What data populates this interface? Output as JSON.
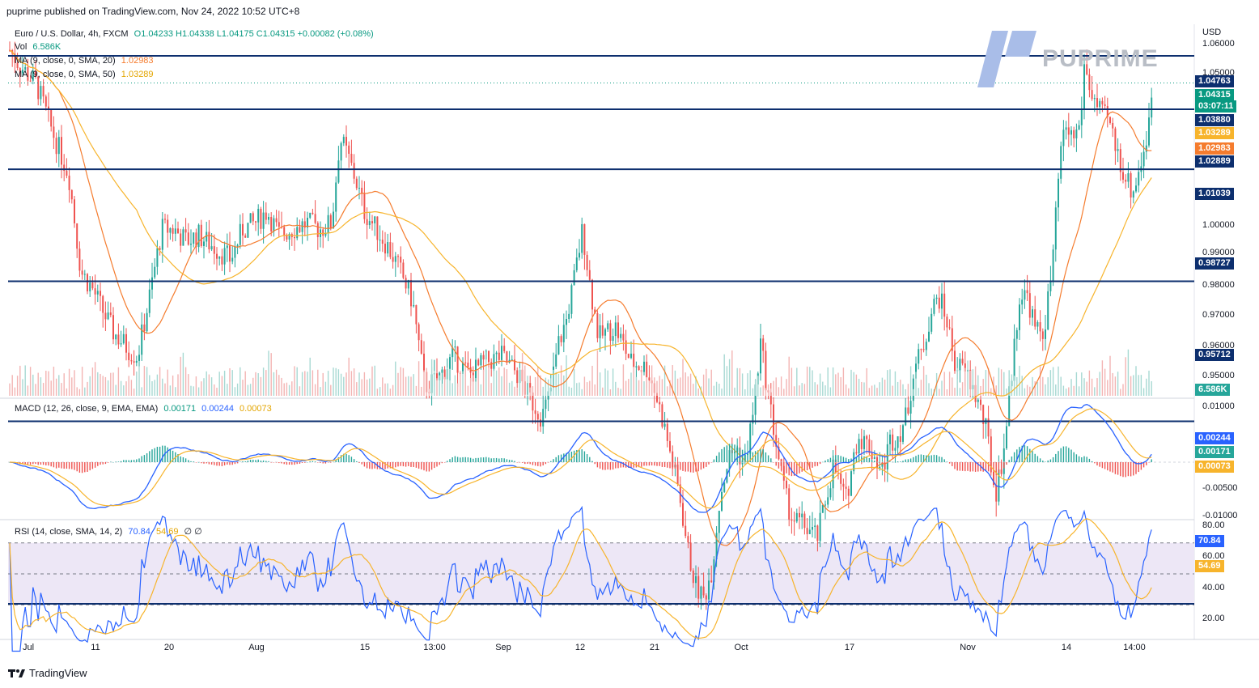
{
  "header": {
    "publisher_line": "puprime published on TradingView.com, Nov 24, 2022 10:52 UTC+8"
  },
  "watermark": {
    "text": "PUPRIME"
  },
  "legend": {
    "symbol": "Euro / U.S. Dollar, 4h, FXCM",
    "ohlc": "O1.04233 H1.04338 L1.04175 C1.04315 +0.00082 (+0.08%)",
    "vol_label": "Vol",
    "vol_value": "6.586K",
    "ma1_label": "MA (9, close, 0, SMA, 20)",
    "ma1_value": "1.02983",
    "ma2_label": "MA (9, close, 0, SMA, 50)",
    "ma2_value": "1.03289",
    "macd_label": "MACD (12, 26, close, 9, EMA, EMA)",
    "macd_hist": "0.00171",
    "macd_line": "0.00244",
    "macd_signal": "0.00073",
    "rsi_label": "RSI (14, close, SMA, 14, 2)",
    "rsi_value": "70.84",
    "rsi_ma": "54.69",
    "rsi_extra": "∅ ∅"
  },
  "price_axis": {
    "currency": "USD",
    "ticks": [
      "1.06000",
      "1.05000",
      "1.00000",
      "0.99000",
      "0.98000",
      "0.97000",
      "0.96000",
      "0.95000"
    ]
  },
  "price_badges": [
    {
      "text": "1.04763",
      "y": 1.04763,
      "color": "#0d2f6e"
    },
    {
      "text": "1.04315",
      "y": 1.04315,
      "color": "#089981"
    },
    {
      "text": "03:07:11",
      "y": 1.04315,
      "color": "#089981"
    },
    {
      "text": "1.03880",
      "y": 1.0388,
      "color": "#0d2f6e"
    },
    {
      "text": "1.03289",
      "y": 1.03289,
      "color": "#f7b42c"
    },
    {
      "text": "1.02983",
      "y": 1.02983,
      "color": "#f57c2e"
    },
    {
      "text": "1.02889",
      "y": 1.02889,
      "color": "#0d2f6e"
    },
    {
      "text": "1.01039",
      "y": 1.01039,
      "color": "#0d2f6e"
    },
    {
      "text": "0.98727",
      "y": 0.98727,
      "color": "#0d2f6e"
    },
    {
      "text": "0.95712",
      "y": 0.95712,
      "color": "#0d2f6e"
    },
    {
      "text": "6.586K",
      "y": 0.9458,
      "color": "#26a69a"
    }
  ],
  "macd_axis": {
    "ticks": [
      "0.01000",
      "-0.00500",
      "-0.01000"
    ],
    "badges": [
      {
        "text": "0.00244",
        "color": "#2962ff"
      },
      {
        "text": "0.00171",
        "color": "#26a69a"
      },
      {
        "text": "0.00073",
        "color": "#f7b42c"
      }
    ]
  },
  "rsi_axis": {
    "ticks": [
      "80.00",
      "60.00",
      "40.00",
      "20.00"
    ],
    "badges": [
      {
        "text": "70.84",
        "color": "#2962ff"
      },
      {
        "text": "54.69",
        "color": "#f7b42c"
      }
    ]
  },
  "time_axis": [
    "Jul",
    "11",
    "20",
    "Aug",
    "15",
    "13:00",
    "Sep",
    "12",
    "21",
    "Oct",
    "17",
    "Nov",
    "14",
    "14:00"
  ],
  "footer": {
    "brand": "TradingView"
  },
  "chart_data": {
    "type": "candlestick",
    "symbol": "EURUSD",
    "timeframe": "4h",
    "ylim": [
      0.945,
      1.062
    ],
    "horizontal_levels": [
      1.0655,
      1.04763,
      1.0388,
      1.02889,
      1.01039,
      0.98727,
      0.95712
    ],
    "price_path": {
      "x": [
        0,
        10,
        25,
        45,
        65,
        85,
        100,
        115,
        125,
        140,
        160,
        170,
        185,
        200,
        215,
        230,
        245,
        265,
        285,
        300,
        315,
        330,
        345,
        360,
        380,
        395,
        410,
        420,
        430,
        440,
        450,
        460,
        480,
        495,
        510,
        525,
        540,
        560,
        580,
        600,
        620,
        640,
        655,
        670,
        680,
        690,
        700,
        710,
        720,
        730,
        740,
        760,
        780,
        800,
        810,
        820,
        830,
        840,
        850,
        860,
        870,
        880,
        890,
        900,
        910,
        920,
        930,
        940,
        950,
        960,
        970,
        980,
        995,
        1010,
        1030,
        1045,
        1060,
        1075,
        1090,
        1100,
        1110,
        1120,
        1130,
        1140,
        1150,
        1160,
        1170,
        1180,
        1195,
        1210,
        1220,
        1230,
        1240,
        1250,
        1260,
        1270,
        1280,
        1290,
        1300,
        1305,
        1310,
        1318,
        1325,
        1335,
        1340,
        1350,
        1360,
        1370,
        1380,
        1390,
        1400,
        1410,
        1420,
        1424
      ],
      "y": [
        1.052,
        1.049,
        1.046,
        1.043,
        1.035,
        1.028,
        1.012,
        1.009,
        1.006,
        1.002,
        0.999,
        0.998,
        1.008,
        1.019,
        1.019,
        1.017,
        1.018,
        1.016,
        1.014,
        1.019,
        1.02,
        1.022,
        1.018,
        1.019,
        1.02,
        1.019,
        1.02,
        1.034,
        1.031,
        1.027,
        1.022,
        1.02,
        1.016,
        1.012,
        1.007,
        0.993,
        0.994,
        0.998,
        0.995,
        0.997,
        0.998,
        0.995,
        0.991,
        0.988,
        0.992,
        1.0,
        1.004,
        1.011,
        1.019,
        1.009,
        1.001,
        1.003,
        0.997,
        0.996,
        0.992,
        0.987,
        0.981,
        0.975,
        0.966,
        0.96,
        0.958,
        0.963,
        0.975,
        0.981,
        0.983,
        0.98,
        0.988,
        1.0,
        0.991,
        0.983,
        0.975,
        0.971,
        0.97,
        0.968,
        0.98,
        0.974,
        0.985,
        0.983,
        0.979,
        0.984,
        0.985,
        0.988,
        0.996,
        0.999,
        1.005,
        1.008,
        1.004,
        0.997,
        0.995,
        0.99,
        0.985,
        0.975,
        0.982,
        0.995,
        1.008,
        1.008,
        1.002,
        1.002,
        1.012,
        1.021,
        1.031,
        1.036,
        1.034,
        1.036,
        1.046,
        1.041,
        1.038,
        1.037,
        1.032,
        1.028,
        1.025,
        1.03,
        1.036,
        1.043
      ]
    }
  }
}
